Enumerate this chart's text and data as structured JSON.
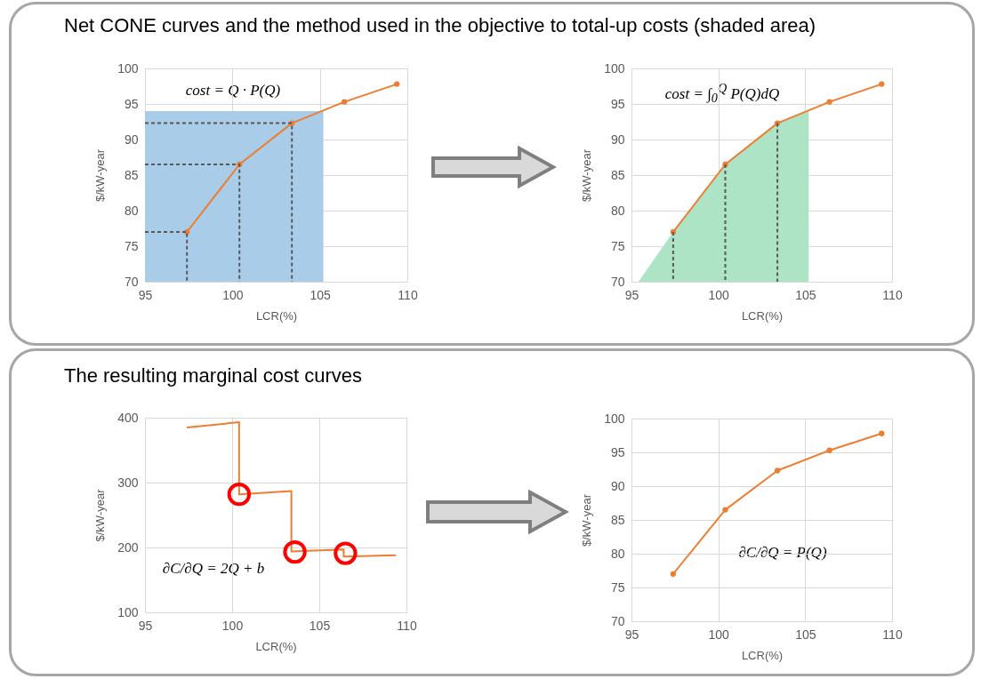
{
  "chart_data": [
    {
      "type": "line",
      "title": "Net CONE curves and the method used in the objective to total-up costs (shaded area)",
      "xlabel": "LCR(%)",
      "ylabel": "$/kW-year",
      "xlim": [
        95,
        110
      ],
      "xticks": [
        95,
        100,
        105,
        110
      ],
      "ylim": [
        70,
        100
      ],
      "yticks": [
        70,
        75,
        80,
        85,
        90,
        95,
        100
      ],
      "grid": true,
      "marker": "circle",
      "annotations": [
        "cost = Q · P(Q)"
      ],
      "series": [
        {
          "type": "area",
          "color": "#a9cce9",
          "x": [
            95,
            105.2
          ],
          "values": [
            94,
            94
          ],
          "marker": "none"
        },
        {
          "color": "#ed7d31",
          "x": [
            97.4,
            100.4,
            103.4,
            106.4,
            109.4
          ],
          "values": [
            77,
            86.5,
            92.3,
            95.3,
            97.8
          ]
        },
        {
          "color": "#595959",
          "line_style": "dashed",
          "marker": "none",
          "x": [
            95,
            97.4,
            97.4
          ],
          "values": [
            77,
            77,
            70
          ]
        },
        {
          "color": "#595959",
          "line_style": "dashed",
          "marker": "none",
          "x": [
            95,
            100.4,
            100.4
          ],
          "values": [
            86.5,
            86.5,
            70
          ]
        },
        {
          "color": "#595959",
          "line_style": "dashed",
          "marker": "none",
          "x": [
            95,
            103.4,
            103.4
          ],
          "values": [
            92.3,
            92.3,
            70
          ]
        }
      ]
    },
    {
      "type": "line",
      "xlabel": "LCR(%)",
      "ylabel": "$/kW-year",
      "xlim": [
        95,
        110
      ],
      "xticks": [
        95,
        100,
        105,
        110
      ],
      "ylim": [
        70,
        100
      ],
      "yticks": [
        70,
        75,
        80,
        85,
        90,
        95,
        100
      ],
      "grid": true,
      "marker": "circle",
      "annotations": [
        "cost = ∫$_{0}$$^{Q}$ P(Q)dQ"
      ],
      "series": [
        {
          "type": "area",
          "color": "#aee4c6",
          "x": [
            95.4,
            97.4,
            100.4,
            103.4,
            105.2
          ],
          "values": [
            70,
            77,
            86.5,
            92.3,
            94
          ],
          "marker": "none"
        },
        {
          "color": "#ed7d31",
          "x": [
            97.4,
            100.4,
            103.4,
            106.4,
            109.4
          ],
          "values": [
            77,
            86.5,
            92.3,
            95.3,
            97.8
          ]
        },
        {
          "color": "#595959",
          "line_style": "dashed",
          "marker": "none",
          "x": [
            97.4,
            97.4
          ],
          "values": [
            77,
            70
          ]
        },
        {
          "color": "#595959",
          "line_style": "dashed",
          "marker": "none",
          "x": [
            100.4,
            100.4
          ],
          "values": [
            86.5,
            70
          ]
        },
        {
          "color": "#595959",
          "line_style": "dashed",
          "marker": "none",
          "x": [
            103.4,
            103.4
          ],
          "values": [
            92.3,
            70
          ]
        }
      ]
    },
    {
      "type": "line",
      "title": "The resulting marginal cost curves",
      "xlabel": "LCR(%)",
      "ylabel": "$/kW-year",
      "xlim": [
        95,
        110
      ],
      "xticks": [
        95,
        100,
        105,
        110
      ],
      "ylim": [
        100,
        400
      ],
      "yticks": [
        100,
        200,
        300,
        400
      ],
      "grid": true,
      "annotations": [
        "∂C/∂Q = 2Q + b"
      ],
      "series": [
        {
          "color": "#ed7d31",
          "x": [
            97.4,
            100.4,
            100.4,
            103.4,
            103.4,
            106.4,
            106.4,
            109.4
          ],
          "values": [
            385,
            393,
            282,
            287,
            194,
            197,
            186,
            188
          ]
        },
        {
          "type": "scatter",
          "color": "#ff0000",
          "marker": "circle",
          "x": [
            100.4,
            103.6,
            106.5
          ],
          "values": [
            282,
            193,
            191
          ]
        }
      ]
    },
    {
      "type": "line",
      "xlabel": "LCR(%)",
      "ylabel": "$/kW-year",
      "xlim": [
        95,
        110
      ],
      "xticks": [
        95,
        100,
        105,
        110
      ],
      "ylim": [
        70,
        100
      ],
      "yticks": [
        70,
        75,
        80,
        85,
        90,
        95,
        100
      ],
      "grid": true,
      "marker": "circle",
      "annotations": [
        "∂C/∂Q = P(Q)"
      ],
      "series": [
        {
          "color": "#ed7d31",
          "x": [
            97.4,
            100.4,
            103.4,
            106.4,
            109.4
          ],
          "values": [
            77,
            86.5,
            92.3,
            95.3,
            97.8
          ]
        }
      ]
    }
  ]
}
